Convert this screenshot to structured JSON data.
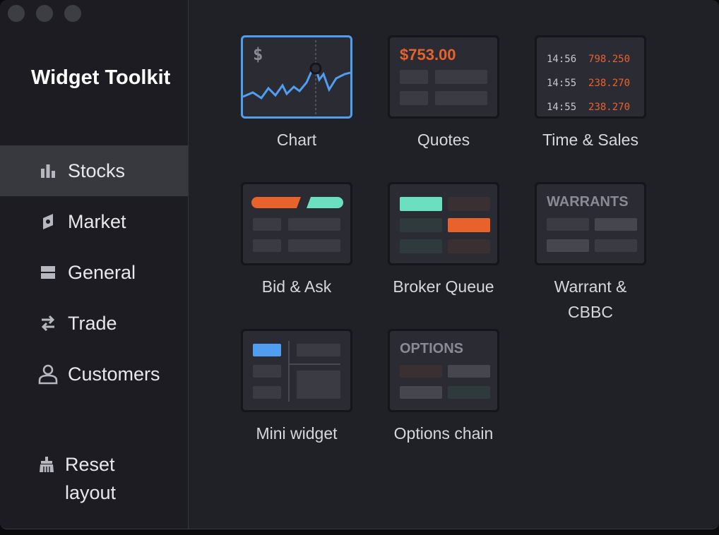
{
  "app": {
    "title": "Widget Toolkit"
  },
  "sidebar": {
    "items": [
      {
        "label": "Stocks",
        "icon": "bar-chart-icon",
        "active": true
      },
      {
        "label": "Market",
        "icon": "market-icon",
        "active": false
      },
      {
        "label": "General",
        "icon": "general-icon",
        "active": false
      },
      {
        "label": "Trade",
        "icon": "swap-arrows-icon",
        "active": false
      },
      {
        "label": "Customers",
        "icon": "person-icon",
        "active": false
      }
    ],
    "reset_label": "Reset layout",
    "reset_icon": "brush-icon"
  },
  "widgets": [
    {
      "label": "Chart",
      "selected": true,
      "preview_text": "$"
    },
    {
      "label": "Quotes",
      "preview_text": "$753.00"
    },
    {
      "label": "Time & Sales",
      "rows": [
        {
          "time": "14:56",
          "price": "798.250"
        },
        {
          "time": "14:55",
          "price": "238.270"
        },
        {
          "time": "14:55",
          "price": "238.270"
        }
      ]
    },
    {
      "label": "Bid & Ask"
    },
    {
      "label": "Broker Queue"
    },
    {
      "label": "Warrant & CBBC",
      "preview_text": "WARRANTS"
    },
    {
      "label": "Mini widget"
    },
    {
      "label": "Options chain",
      "preview_text": "OPTIONS"
    }
  ],
  "colors": {
    "accent_blue": "#4f9ef0",
    "orange": "#e8622c",
    "teal": "#6be0c0",
    "selected_border": "#4f9ef0"
  }
}
